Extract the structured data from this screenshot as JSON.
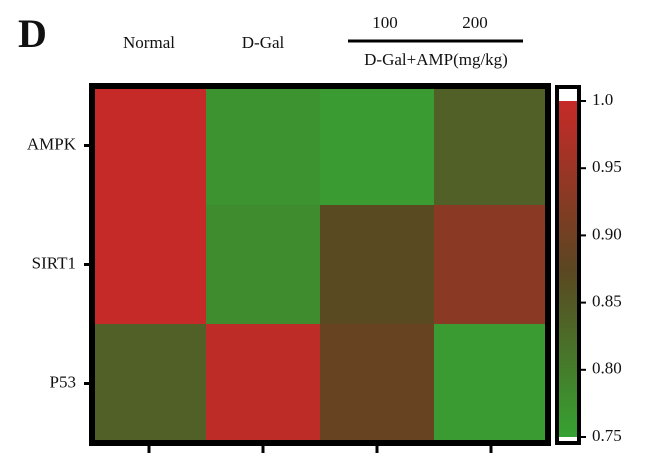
{
  "chart_data": {
    "type": "heatmap",
    "panel_label": "D",
    "categories": [
      "Normal",
      "D-Gal",
      "100",
      "200"
    ],
    "group_label": "D-Gal+AMP(mg/kg)",
    "rows": [
      "AMPK",
      "SIRT1",
      "P53"
    ],
    "values": [
      [
        1.0,
        0.77,
        0.76,
        0.84
      ],
      [
        1.0,
        0.78,
        0.87,
        0.93
      ],
      [
        0.84,
        0.99,
        0.89,
        0.76
      ]
    ],
    "zlim": [
      0.75,
      1
    ],
    "zticks": [
      {
        "value": 1,
        "label": "1.0"
      },
      0.95,
      {
        "value": 0.9,
        "label": "0.90"
      },
      0.85,
      {
        "value": 0.8,
        "label": "0.80"
      },
      0.75
    ],
    "colorscale": [
      "#36a232",
      "#5b4621",
      "#c62a28"
    ]
  }
}
